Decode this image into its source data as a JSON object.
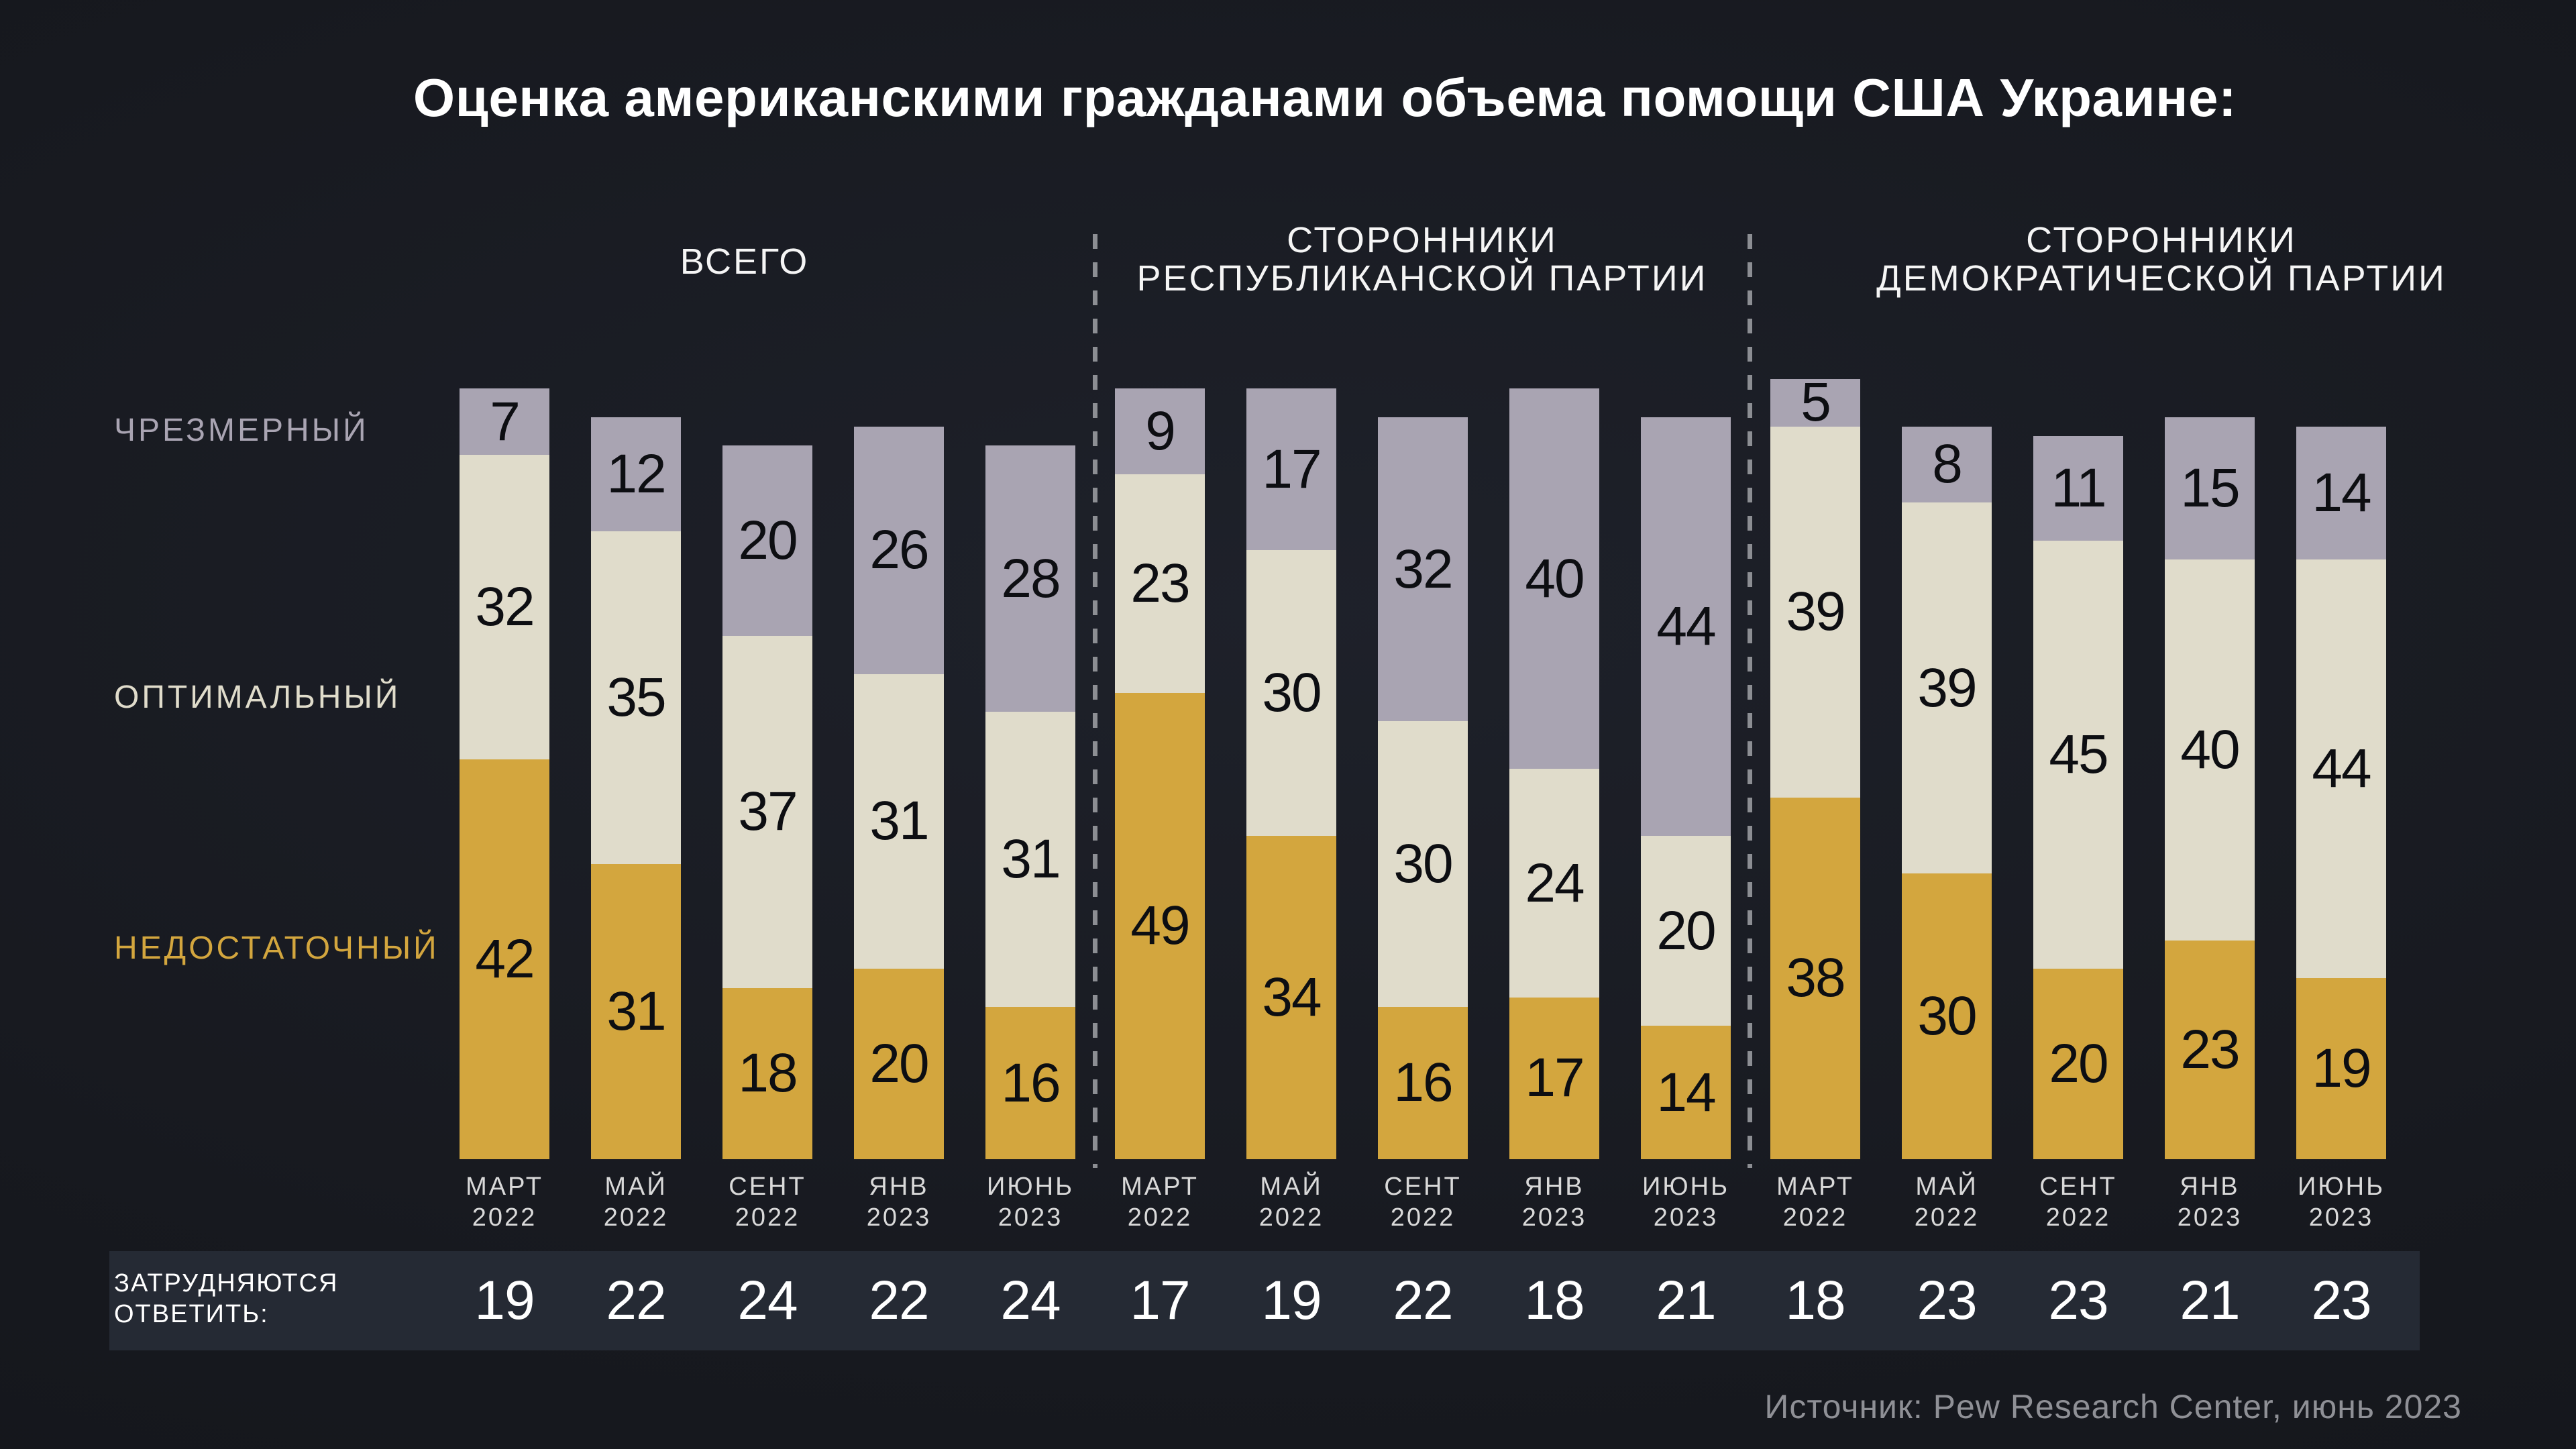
{
  "title": "Оценка американскими гражданами объема помощи США Украине:",
  "legend": {
    "excessive": {
      "label": "ЧРЕЗМЕРНЫЙ",
      "color": "#a9a4b2"
    },
    "optimal": {
      "label": "ОПТИМАЛЬНЫЙ",
      "color": "#e0dccb"
    },
    "insufficient": {
      "label": "НЕДОСТАТОЧНЫЙ",
      "color": "#d3a63e"
    }
  },
  "footer": {
    "label_lines": [
      "ЗАТРУДНЯЮТСЯ",
      "ОТВЕТИТЬ:"
    ]
  },
  "source": "Источник: Pew Research Center, июнь 2023",
  "chart_data": {
    "type": "bar",
    "stacked": true,
    "unit": "percent",
    "categories": [
      "МАРТ 2022",
      "МАЙ 2022",
      "СЕНТ 2022",
      "ЯНВ 2023",
      "ИЮНЬ 2023"
    ],
    "segment_order_top_to_bottom": [
      "excessive",
      "optimal",
      "insufficient"
    ],
    "groups": [
      {
        "name": "ВСЕГО",
        "name_lines": [
          "ВСЕГО"
        ],
        "series": {
          "excessive": [
            7,
            12,
            20,
            26,
            28
          ],
          "optimal": [
            32,
            35,
            37,
            31,
            31
          ],
          "insufficient": [
            42,
            31,
            18,
            20,
            16
          ]
        },
        "no_answer": [
          19,
          22,
          24,
          22,
          24
        ]
      },
      {
        "name": "СТОРОННИКИ РЕСПУБЛИКАНСКОЙ ПАРТИИ",
        "name_lines": [
          "СТОРОННИКИ",
          "РЕСПУБЛИКАНСКОЙ ПАРТИИ"
        ],
        "series": {
          "excessive": [
            9,
            17,
            32,
            40,
            44
          ],
          "optimal": [
            23,
            30,
            30,
            24,
            20
          ],
          "insufficient": [
            49,
            34,
            16,
            17,
            14
          ]
        },
        "no_answer": [
          17,
          19,
          22,
          18,
          21
        ]
      },
      {
        "name": "СТОРОННИКИ ДЕМОКРАТИЧЕСКОЙ ПАРТИИ",
        "name_lines": [
          "СТОРОННИКИ",
          "ДЕМОКРАТИЧЕСКОЙ ПАРТИИ"
        ],
        "series": {
          "excessive": [
            5,
            8,
            11,
            15,
            14
          ],
          "optimal": [
            39,
            39,
            45,
            40,
            44
          ],
          "insufficient": [
            38,
            30,
            20,
            23,
            19
          ]
        },
        "no_answer": [
          18,
          23,
          23,
          21,
          23
        ]
      }
    ]
  }
}
